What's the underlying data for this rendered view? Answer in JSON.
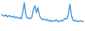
{
  "chart_data": {
    "type": "line",
    "x": [
      0,
      1,
      2,
      3,
      4,
      5,
      6,
      7,
      8,
      9,
      10,
      11,
      12,
      13,
      14,
      15,
      16,
      17,
      18,
      19,
      20,
      21,
      22,
      23,
      24,
      25,
      26,
      27,
      28,
      29,
      30,
      31,
      32,
      33,
      34,
      35,
      36,
      37,
      38,
      39,
      40,
      41,
      42,
      43,
      44,
      45,
      46,
      47,
      48,
      49,
      50,
      51,
      52,
      53,
      54
    ],
    "values": [
      55,
      50,
      48,
      52,
      45,
      50,
      47,
      44,
      48,
      42,
      45,
      40,
      43,
      38,
      60,
      95,
      55,
      40,
      42,
      38,
      45,
      70,
      85,
      60,
      78,
      50,
      40,
      35,
      38,
      33,
      36,
      30,
      34,
      28,
      32,
      30,
      35,
      30,
      28,
      33,
      30,
      35,
      40,
      38,
      55,
      90,
      50,
      35,
      30,
      33,
      28,
      30,
      32,
      28,
      30
    ],
    "xlim": [
      0,
      54
    ],
    "ylim": [
      0,
      100
    ],
    "color": "#3d8fd6",
    "tick_labels": false,
    "grid": false
  }
}
